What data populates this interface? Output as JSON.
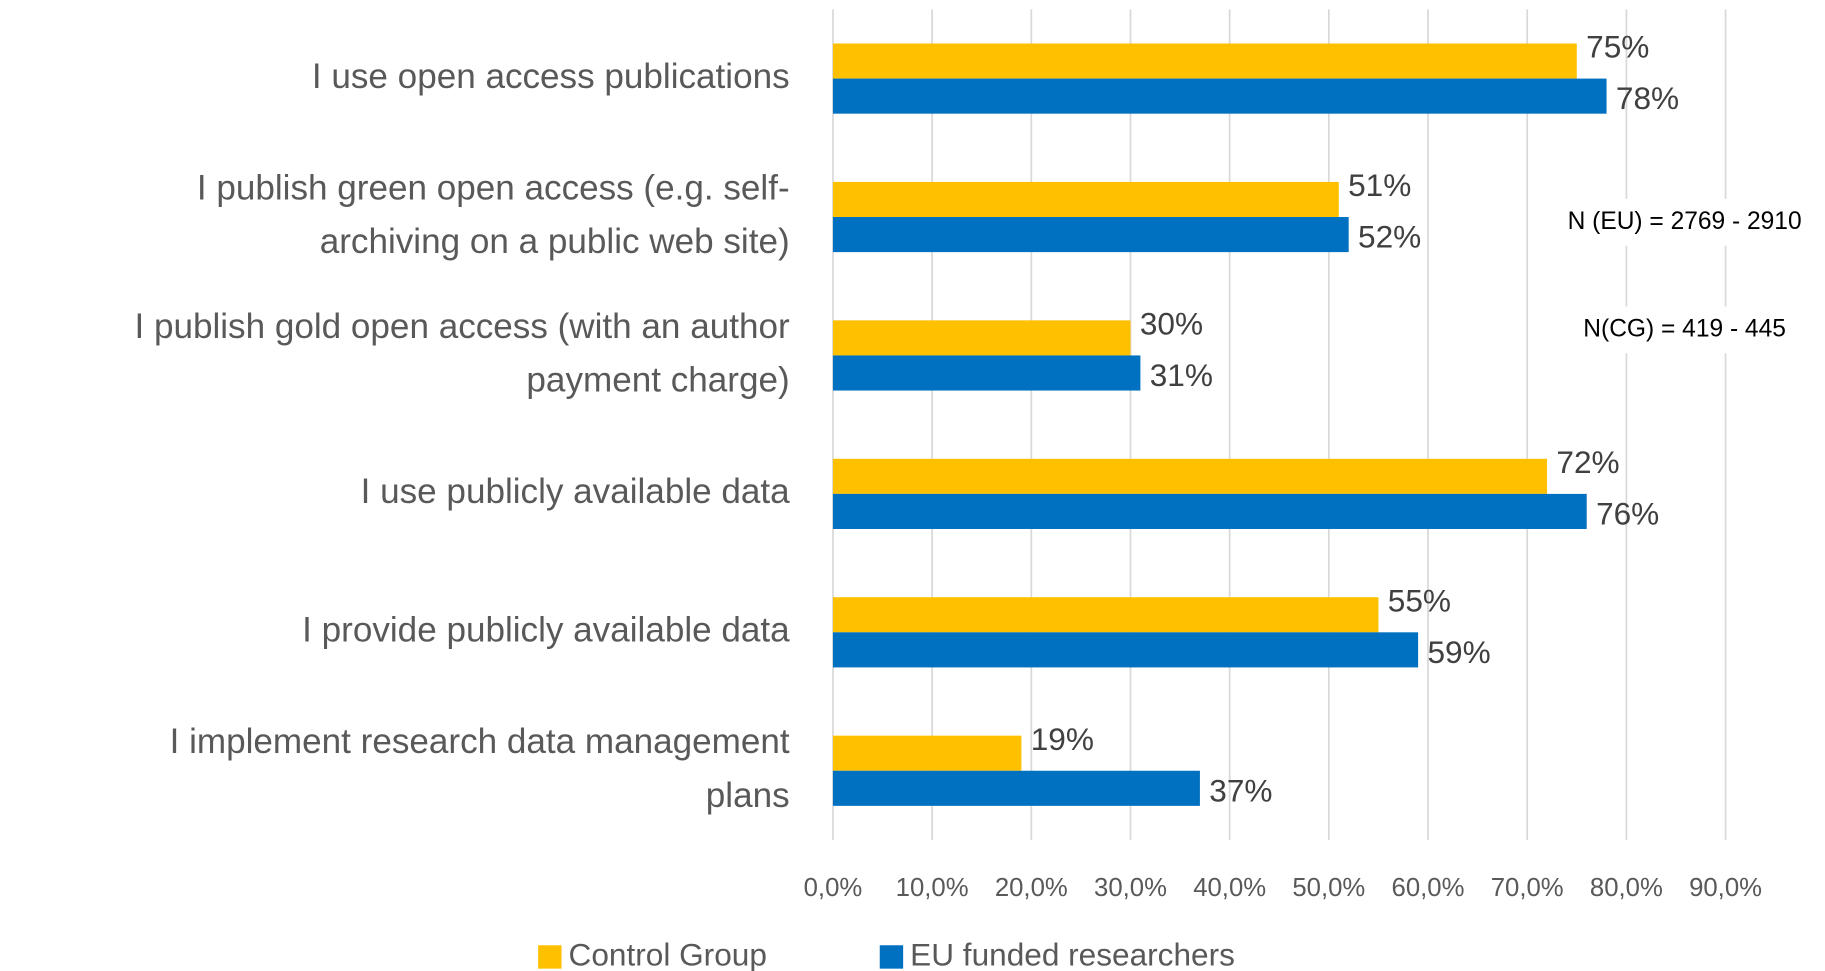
{
  "chart_data": {
    "type": "barh",
    "categories": [
      [
        "I use open access publications"
      ],
      [
        "I publish green open access (e.g. self-",
        "archiving on a public web site)"
      ],
      [
        "I publish gold open access (with an author",
        "payment charge)"
      ],
      [
        "I use publicly available data"
      ],
      [
        "I provide publicly available data"
      ],
      [
        "I implement research data management",
        "plans"
      ]
    ],
    "series": [
      {
        "name": "Control Group",
        "color": "#ffc000",
        "values": [
          75,
          51,
          30,
          72,
          55,
          19
        ],
        "value_labels": [
          "75%",
          "51%",
          "30%",
          "72%",
          "55%",
          "19%"
        ]
      },
      {
        "name": "EU funded researchers",
        "color": "#0070c0",
        "values": [
          78,
          52,
          31,
          76,
          59,
          37
        ],
        "value_labels": [
          "78%",
          "52%",
          "31%",
          "76%",
          "59%",
          "37%"
        ]
      }
    ],
    "xlim": [
      0,
      90
    ],
    "xticks": [
      {
        "value": 0,
        "label": "0,0%"
      },
      {
        "value": 10,
        "label": "10,0%"
      },
      {
        "value": 20,
        "label": "20,0%"
      },
      {
        "value": 30,
        "label": "30,0%"
      },
      {
        "value": 40,
        "label": "40,0%"
      },
      {
        "value": 50,
        "label": "50,0%"
      },
      {
        "value": 60,
        "label": "60,0%"
      },
      {
        "value": 70,
        "label": "70,0%"
      },
      {
        "value": 80,
        "label": "80,0%"
      },
      {
        "value": 90,
        "label": "90,0%"
      }
    ],
    "grid": true,
    "annotations": [
      "N (EU) = 2769 - 2910",
      "N(CG) = 419 - 445"
    ],
    "legend": "bottom"
  }
}
